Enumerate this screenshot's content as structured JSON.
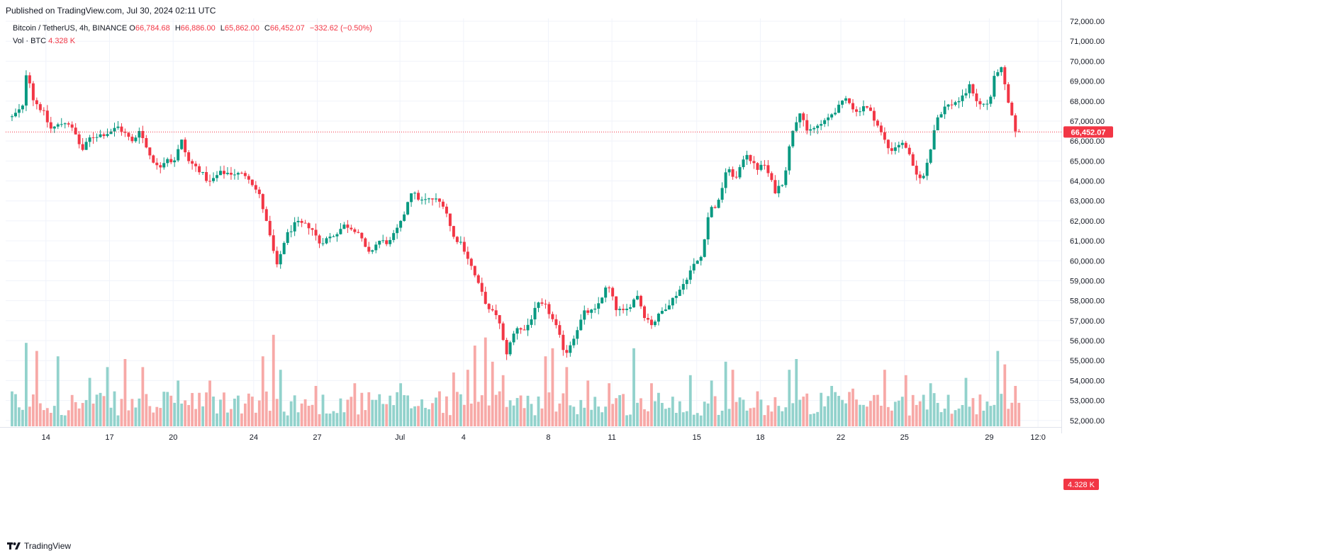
{
  "header": {
    "published": "Published on TradingView.com, Jul 30, 2024 02:11 UTC"
  },
  "legend": {
    "symbol": "Bitcoin / TetherUS, 4h, BINANCE",
    "open_label": "O",
    "open": "66,784.68",
    "high_label": "H",
    "high": "66,886.00",
    "low_label": "L",
    "low": "65,862.00",
    "close_label": "C",
    "close": "66,452.07",
    "change": "−332.62 (−0.50%)",
    "vol_label": "Vol · BTC",
    "vol_value": "4.328 K"
  },
  "footer": {
    "logo_text": "TradingView"
  },
  "colors": {
    "up": "#089981",
    "down": "#f23645",
    "vol_up": "#92d2cc",
    "vol_down": "#f7a9a7",
    "grid": "#f0f3fa",
    "axis_text": "#131722",
    "price_tag": "#f23645"
  },
  "chart_data": {
    "type": "candlestick",
    "interval": "4h",
    "y_ticks": [
      "72,000.00",
      "71,000.00",
      "70,000.00",
      "69,000.00",
      "68,000.00",
      "67,000.00",
      "66,000.00",
      "65,000.00",
      "64,000.00",
      "63,000.00",
      "62,000.00",
      "61,000.00",
      "60,000.00",
      "59,000.00",
      "58,000.00",
      "57,000.00",
      "56,000.00",
      "55,000.00",
      "54,000.00",
      "53,000.00",
      "52,000.00"
    ],
    "y_tick_values": [
      72000,
      71000,
      70000,
      69000,
      68000,
      67000,
      66000,
      65000,
      64000,
      63000,
      62000,
      61000,
      60000,
      59000,
      58000,
      57000,
      56000,
      55000,
      54000,
      53000,
      52000
    ],
    "ylim": [
      51850,
      72000
    ],
    "x_ticks": [
      {
        "label": "14",
        "day": 1.6
      },
      {
        "label": "17",
        "day": 4.6
      },
      {
        "label": "20",
        "day": 7.6
      },
      {
        "label": "24",
        "day": 11.4
      },
      {
        "label": "27",
        "day": 14.4
      },
      {
        "label": "Jul",
        "day": 18.3
      },
      {
        "label": "4",
        "day": 21.3
      },
      {
        "label": "8",
        "day": 25.3
      },
      {
        "label": "11",
        "day": 28.3
      },
      {
        "label": "15",
        "day": 32.3
      },
      {
        "label": "18",
        "day": 35.3
      },
      {
        "label": "22",
        "day": 39.1
      },
      {
        "label": "25",
        "day": 42.1
      },
      {
        "label": "29",
        "day": 46.1
      },
      {
        "label": "12:0",
        "day": 48.4
      }
    ],
    "last_price": 66452.07,
    "last_price_label": "66,452.07",
    "last_volume_label": "4.328 K",
    "keypoints": [
      [
        0.0,
        67200
      ],
      [
        0.5,
        67700
      ],
      [
        0.7,
        69700
      ],
      [
        1.0,
        68100
      ],
      [
        1.5,
        67400
      ],
      [
        1.8,
        66600
      ],
      [
        2.6,
        67000
      ],
      [
        3.0,
        66300
      ],
      [
        3.3,
        65500
      ],
      [
        3.7,
        66200
      ],
      [
        4.5,
        66400
      ],
      [
        5.0,
        66700
      ],
      [
        5.4,
        66300
      ],
      [
        5.7,
        65900
      ],
      [
        6.0,
        66600
      ],
      [
        6.4,
        65500
      ],
      [
        6.9,
        64600
      ],
      [
        7.3,
        65200
      ],
      [
        7.6,
        64900
      ],
      [
        8.0,
        66000
      ],
      [
        8.3,
        65000
      ],
      [
        8.8,
        64600
      ],
      [
        9.3,
        63900
      ],
      [
        9.8,
        64400
      ],
      [
        10.2,
        64400
      ],
      [
        11.1,
        64300
      ],
      [
        11.7,
        63200
      ],
      [
        12.1,
        61500
      ],
      [
        12.5,
        59700
      ],
      [
        12.9,
        61200
      ],
      [
        13.4,
        61900
      ],
      [
        14.1,
        61700
      ],
      [
        14.5,
        60900
      ],
      [
        15.2,
        61300
      ],
      [
        15.7,
        61800
      ],
      [
        16.3,
        61500
      ],
      [
        16.8,
        60300
      ],
      [
        17.3,
        61000
      ],
      [
        17.8,
        60900
      ],
      [
        18.4,
        62000
      ],
      [
        18.8,
        63500
      ],
      [
        19.3,
        63000
      ],
      [
        19.9,
        63100
      ],
      [
        20.4,
        62800
      ],
      [
        20.8,
        61200
      ],
      [
        21.2,
        60900
      ],
      [
        21.6,
        59900
      ],
      [
        22.0,
        58800
      ],
      [
        22.5,
        57500
      ],
      [
        22.9,
        57300
      ],
      [
        23.3,
        55300
      ],
      [
        23.8,
        56700
      ],
      [
        24.2,
        56500
      ],
      [
        24.8,
        57800
      ],
      [
        25.2,
        57700
      ],
      [
        25.7,
        56600
      ],
      [
        26.1,
        55300
      ],
      [
        26.5,
        56200
      ],
      [
        27.0,
        57400
      ],
      [
        27.5,
        57500
      ],
      [
        28.1,
        58800
      ],
      [
        28.5,
        57600
      ],
      [
        28.9,
        57400
      ],
      [
        29.5,
        58300
      ],
      [
        29.8,
        57300
      ],
      [
        30.2,
        56800
      ],
      [
        30.6,
        57400
      ],
      [
        31.1,
        58000
      ],
      [
        31.6,
        58700
      ],
      [
        32.1,
        59700
      ],
      [
        32.5,
        60200
      ],
      [
        32.9,
        62600
      ],
      [
        33.3,
        62800
      ],
      [
        33.7,
        64600
      ],
      [
        34.2,
        64100
      ],
      [
        34.6,
        65500
      ],
      [
        35.1,
        64600
      ],
      [
        35.5,
        64800
      ],
      [
        36.0,
        63500
      ],
      [
        36.4,
        64000
      ],
      [
        36.8,
        66500
      ],
      [
        37.2,
        67600
      ],
      [
        37.5,
        66400
      ],
      [
        37.9,
        66700
      ],
      [
        38.3,
        66900
      ],
      [
        38.7,
        67400
      ],
      [
        39.0,
        67700
      ],
      [
        39.4,
        68200
      ],
      [
        39.8,
        67400
      ],
      [
        40.2,
        67800
      ],
      [
        40.6,
        67300
      ],
      [
        41.0,
        66400
      ],
      [
        41.4,
        65500
      ],
      [
        41.9,
        65900
      ],
      [
        42.2,
        65700
      ],
      [
        42.6,
        64300
      ],
      [
        43.0,
        64200
      ],
      [
        43.3,
        65500
      ],
      [
        43.6,
        67100
      ],
      [
        44.0,
        67700
      ],
      [
        44.4,
        67900
      ],
      [
        44.8,
        68100
      ],
      [
        45.2,
        68800
      ],
      [
        45.6,
        67800
      ],
      [
        46.1,
        67900
      ],
      [
        46.4,
        69500
      ],
      [
        46.7,
        69600
      ],
      [
        46.9,
        68300
      ],
      [
        47.3,
        66600
      ],
      [
        47.5,
        66450
      ]
    ],
    "volume_spikes": [
      [
        0.7,
        3.1
      ],
      [
        1.2,
        2.8
      ],
      [
        2.2,
        2.6
      ],
      [
        3.6,
        1.8
      ],
      [
        4.5,
        2.2
      ],
      [
        5.4,
        2.5
      ],
      [
        6.1,
        2.2
      ],
      [
        7.9,
        1.7
      ],
      [
        9.4,
        1.7
      ],
      [
        11.9,
        2.6
      ],
      [
        12.3,
        3.4
      ],
      [
        12.7,
        2.1
      ],
      [
        14.4,
        1.5
      ],
      [
        16.1,
        1.6
      ],
      [
        18.4,
        1.6
      ],
      [
        20.2,
        1.3
      ],
      [
        20.9,
        2.0
      ],
      [
        21.5,
        2.1
      ],
      [
        21.9,
        3.0
      ],
      [
        22.3,
        3.3
      ],
      [
        22.7,
        2.4
      ],
      [
        23.2,
        1.9
      ],
      [
        25.1,
        2.6
      ],
      [
        25.5,
        2.9
      ],
      [
        26.1,
        2.2
      ],
      [
        27.2,
        1.7
      ],
      [
        28.1,
        1.6
      ],
      [
        29.3,
        2.9
      ],
      [
        30.1,
        1.6
      ],
      [
        32.0,
        1.9
      ],
      [
        33.0,
        1.7
      ],
      [
        33.6,
        2.4
      ],
      [
        34.0,
        2.1
      ],
      [
        35.1,
        1.3
      ],
      [
        36.6,
        2.1
      ],
      [
        37.0,
        2.5
      ],
      [
        38.7,
        1.5
      ],
      [
        39.6,
        1.4
      ],
      [
        41.2,
        2.1
      ],
      [
        42.1,
        1.9
      ],
      [
        43.4,
        1.6
      ],
      [
        45.0,
        1.8
      ],
      [
        46.5,
        2.8
      ],
      [
        46.8,
        2.3
      ],
      [
        47.3,
        1.5
      ]
    ]
  }
}
